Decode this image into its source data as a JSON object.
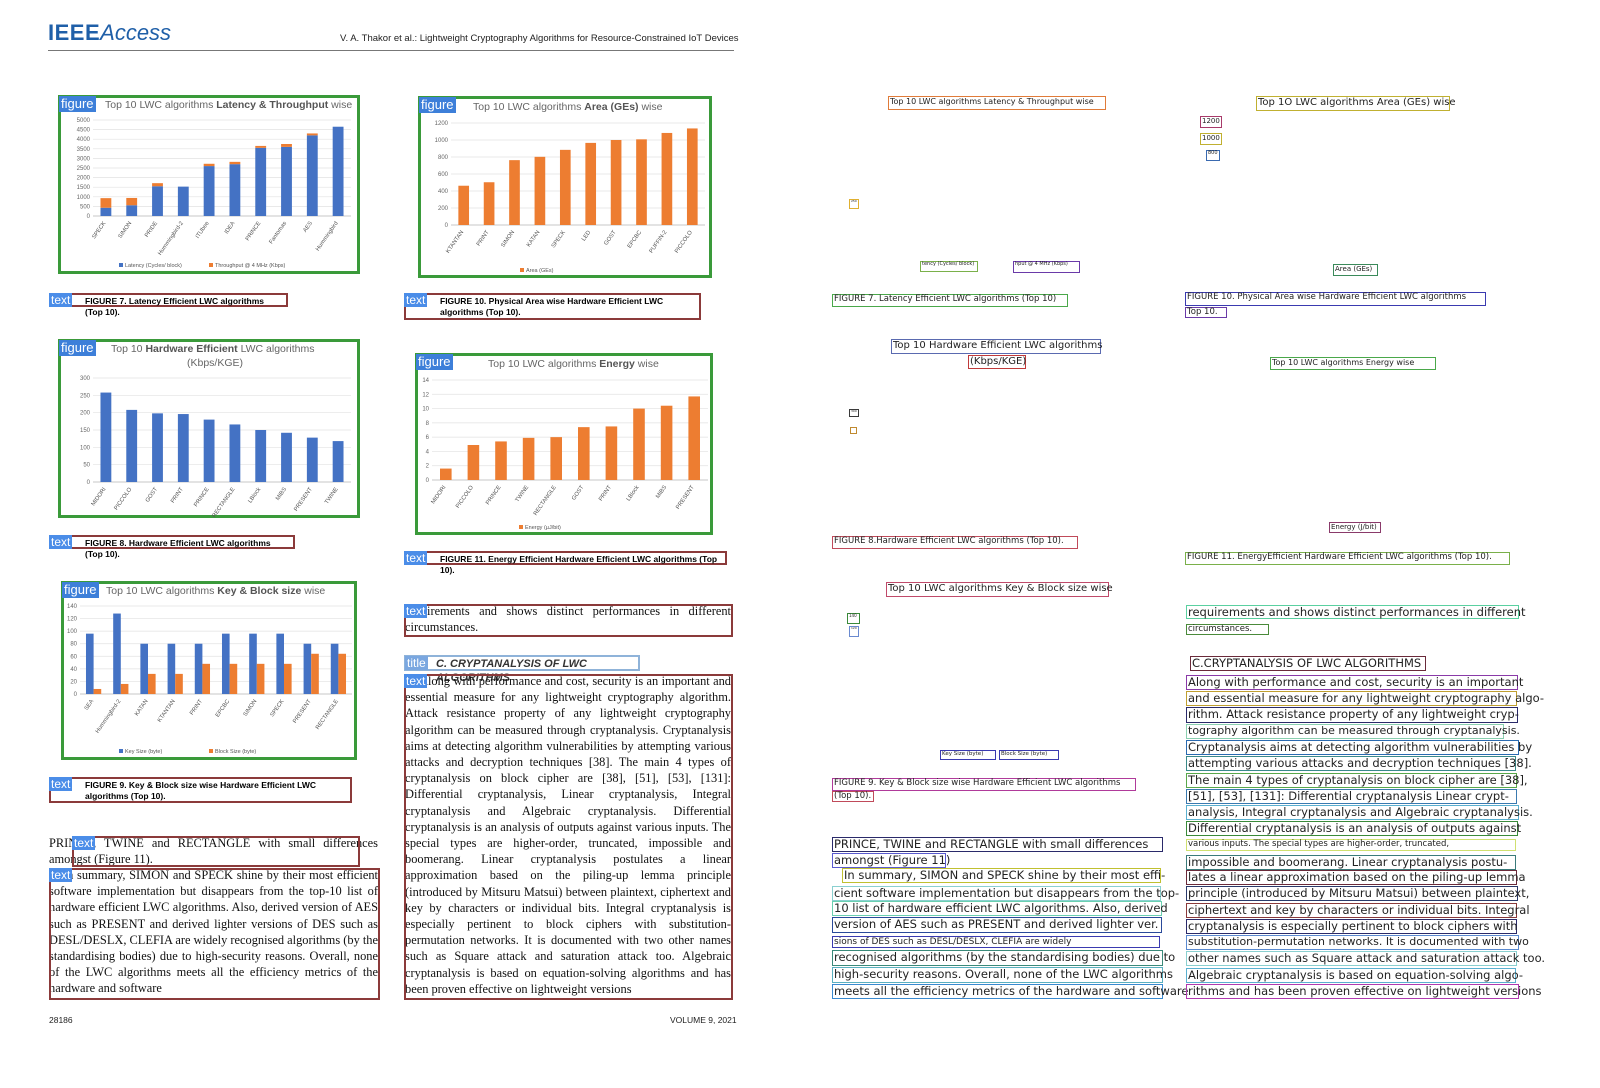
{
  "header": {
    "logo_ieee": "IEEE",
    "logo_access": "Access",
    "running_head": "V. A. Thakor et al.: Lightweight Cryptography Algorithms for Resource-Constrained IoT Devices"
  },
  "tags": {
    "figure": "figure",
    "text": "text",
    "title": "title"
  },
  "figures": {
    "fig7": {
      "title_pre": "Top 10 LWC algorithms ",
      "title_bold": "Latency & Throughput",
      "title_post": " wise",
      "caption": "FIGURE 7.  Latency Efficient LWC algorithms (Top 10)."
    },
    "fig10": {
      "title_pre": "Top 10 LWC algorithms ",
      "title_bold": "Area (GEs)",
      "title_post": " wise",
      "caption": "FIGURE 10.  Physical Area wise Hardware Efficient LWC algorithms (Top 10)."
    },
    "fig8": {
      "title_pre": "Top 10 ",
      "title_bold": "Hardware Efficient",
      "title_post": " LWC algorithms",
      "title_line2": "(Kbps/KGE)",
      "caption": "FIGURE 8.  Hardware Efficient LWC algorithms (Top 10)."
    },
    "fig11": {
      "title_pre": "Top 10 LWC algorithms ",
      "title_bold": "Energy",
      "title_post": " wise",
      "caption": "FIGURE 11.  Energy Efficient Hardware Efficient LWC algorithms (Top 10)."
    },
    "fig9": {
      "title_pre": "Top 10 LWC algorithms ",
      "title_bold": "Key & Block size",
      "title_post": " wise",
      "caption": "FIGURE 9.  Key & Block size wise Hardware Efficient LWC algorithms (Top 10)."
    }
  },
  "chart_data": [
    {
      "id": "fig7",
      "type": "bar",
      "stacked": true,
      "categories": [
        "SPECK",
        "SIMON",
        "PRIDE",
        "Hummingbird-2",
        "ITUbee",
        "IDEA",
        "PRINCE",
        "Fantomas",
        "AES",
        "Hummingbird"
      ],
      "series": [
        {
          "name": "Latency (Cycles/ block)",
          "color": "#4472c4",
          "values": [
            430,
            560,
            1550,
            1530,
            2600,
            2700,
            3550,
            3600,
            4200,
            4650
          ]
        },
        {
          "name": "Throughput @ 4 MHz (Kbps)",
          "color": "#ed7d31",
          "values": [
            500,
            380,
            160,
            0,
            120,
            120,
            100,
            150,
            100,
            0
          ]
        }
      ],
      "yticks": [
        0,
        500,
        1000,
        1500,
        2000,
        2500,
        3000,
        3500,
        4000,
        4500,
        5000
      ],
      "ylim": [
        0,
        5000
      ],
      "legend": "bottom"
    },
    {
      "id": "fig10",
      "type": "bar",
      "categories": [
        "KTANTAN",
        "PRINT",
        "SIMON",
        "KATAN",
        "SPECK",
        "LED",
        "GOST",
        "EPCBC",
        "PUFFIN-2",
        "PICCOLO"
      ],
      "series": [
        {
          "name": "Area (GEs)",
          "color": "#ed7d31",
          "values": [
            462,
            503,
            763,
            802,
            884,
            966,
            1000,
            1008,
            1083,
            1136
          ]
        }
      ],
      "yticks": [
        0,
        200,
        400,
        600,
        800,
        1000,
        1200
      ],
      "ylim": [
        0,
        1200
      ],
      "legend": "bottom"
    },
    {
      "id": "fig8",
      "type": "bar",
      "categories": [
        "MIDORI",
        "PICCOLO",
        "GOST",
        "PRINT",
        "PRINCE",
        "RECTANGLE",
        "LBlock",
        "MIBS",
        "PRESENT",
        "TWINE"
      ],
      "series": [
        {
          "name": "",
          "color": "#4472c4",
          "values": [
            258,
            208,
            198,
            196,
            180,
            166,
            150,
            142,
            128,
            118
          ]
        }
      ],
      "yticks": [
        0,
        50,
        100,
        150,
        200,
        250,
        300
      ],
      "ylim": [
        0,
        300
      ],
      "legend": "none"
    },
    {
      "id": "fig11",
      "type": "bar",
      "categories": [
        "MIDORI",
        "PICCOLO",
        "PRINCE",
        "TWINE",
        "RECTANGLE",
        "GOST",
        "PRINT",
        "LBlock",
        "MIBS",
        "PRESENT"
      ],
      "series": [
        {
          "name": "Energy (µJ/bit)",
          "color": "#ed7d31",
          "values": [
            1.6,
            4.9,
            5.4,
            5.9,
            6.0,
            7.4,
            7.5,
            10,
            10.4,
            11.7
          ]
        }
      ],
      "yticks": [
        0,
        2,
        4,
        6,
        8,
        10,
        12,
        14
      ],
      "ylim": [
        0,
        14
      ],
      "legend": "bottom"
    },
    {
      "id": "fig9",
      "type": "bar",
      "categories": [
        "SEA",
        "Hummingbird-2",
        "KATAN",
        "KTANTAN",
        "PRINT",
        "EPCBC",
        "SIMON",
        "SPECK",
        "PRESENT",
        "RECTANGLE"
      ],
      "series": [
        {
          "name": "Key Size (byte)",
          "color": "#4472c4",
          "values": [
            96,
            128,
            80,
            80,
            80,
            96,
            96,
            96,
            80,
            80
          ]
        },
        {
          "name": "Block Size (byte)",
          "color": "#ed7d31",
          "values": [
            8,
            16,
            32,
            32,
            48,
            48,
            48,
            48,
            64,
            64
          ]
        }
      ],
      "yticks": [
        0,
        20,
        40,
        60,
        80,
        100,
        120,
        140
      ],
      "ylim": [
        0,
        140
      ],
      "legend": "bottom"
    }
  ],
  "left_col": {
    "para1": "PRINCE, TWINE and RECTANGLE with small differences amongst (Figure 11).",
    "para2": "In summary, SIMON and SPECK shine by their most efficient software implementation but disappears from the top-10 list of hardware efficient LWC algorithms. Also, derived version of AES such as PRESENT and derived lighter versions of DES such as DESL/DESLX, CLEFIA are widely recognised algorithms (by the standardising bodies) due to high-security reasons. Overall, none of the LWC algorithms meets all the efficiency metrics of the hardware and software"
  },
  "right_col": {
    "para1": "requirements and shows distinct performances in different circumstances.",
    "section_title": "C. CRYPTANALYSIS OF LWC ALGORITHMS",
    "para2": "Along with performance and cost, security is an important and essential measure for any lightweight cryptography algorithm. Attack resistance property of any lightweight cryptography algorithm can be measured through cryptanalysis. Cryptanalysis aims at detecting algorithm vulnerabilities by attempting various attacks and decryption techniques [38]. The main 4 types of cryptanalysis on block cipher are [38], [51], [53], [131]: Differential cryptanalysis, Linear cryptanalysis, Integral cryptanalysis and Algebraic cryptanalysis. Differential cryptanalysis is an analysis of outputs against various inputs. The special types are higher-order, truncated, impossible and boomerang. Linear cryptanalysis postulates a linear approximation based on the piling-up lemma principle (introduced by Mitsuru Matsui) between plaintext, ciphertext and key by characters or individual bits. Integral cryptanalysis is especially pertinent to block ciphers with substitution-permutation networks. It is documented with two other names such as Square attack and saturation attack too. Algebraic cryptanalysis is based on equation-solving algorithms and has been proven effective on lightweight versions"
  },
  "footer": {
    "page": "28186",
    "volume": "VOLUME 9, 2021"
  },
  "ocr": {
    "fig7_title": "Top 10 LWC algorithms Latency & Throughput wise",
    "fig7_leg1": "tency (Cycles/ block)",
    "fig7_leg2": "hput @ 4 MHz (Kbps)",
    "fig7_tick": "250",
    "fig7_cap": "FIGURE 7. Latency Efficient LWC algorithms (Top 10)",
    "fig10_title": "Top 1O LWC algorithms Area (GEs) wise",
    "fig10_t1": "1200",
    "fig10_t2": "1000",
    "fig10_t3": "800",
    "fig10_leg": "Area (GEs)",
    "fig10_cap_l1": "FIGURE 10. Physical Area wise Hardware Efficient LWC algorithms",
    "fig10_cap_l2": "Top 10.",
    "fig8_title_l1": "Top 10 Hardware Efficient LWC algorithms",
    "fig8_title_l2": "(Kbps/KGE)",
    "fig8_t1": "300",
    "fig8_cap": "FIGURE 8.Hardware Efficient LWC algorithms (Top 10).",
    "fig11_title": "Top 10 LWC algorithms Energy wise",
    "fig11_leg": "Energy (J/bit)",
    "fig11_cap": "FIGURE 11. EnergyEfficient Hardware Efficient LWC algorithms (Top 10).",
    "fig9_title": "Top 10 LWC algorithms Key & Block size wise",
    "fig9_t1": "140",
    "fig9_t2": "120",
    "fig9_leg1": "Key Size (byte)",
    "fig9_leg2": "Block Size (byte)",
    "fig9_cap_l1": "FIGURE 9. Key & Block size wise Hardware Efficient LWC algorithms",
    "fig9_cap_l2": "(Top 10).",
    "left_lines": [
      "PRINCE, TWINE and RECTANGLE with small differences",
      "amongst (Figure 11)",
      "In summary, SIMON and SPECK shine by their most effi-",
      "cient software implementation but disappears from the top-",
      "10 list of hardware efficient LWC algorithms. Also, derived",
      "version of AES such as PRESENT and derived lighter ver.",
      "sions of DES such as DESL/DESLX, CLEFIA are widely",
      "recognised algorithms (by the standardising bodies) due to",
      "high-security reasons. Overall, none of the LWC algorithms",
      "meets all the efficiency metrics of the hardware and software"
    ],
    "right_lines": [
      "requirements and shows distinct performances in different",
      "circumstances.",
      "C.CRYPTANALYSIS OF LWC ALGORITHMS",
      "Along with performance and cost, security is an important",
      "and essential measure for any lightweight cryptography algo-",
      "rithm. Attack resistance property of any lightweight cryp-",
      "tography algorithm can be measured through cryptanalysis.",
      "Cryptanalysis aims at detecting algorithm vulnerabilities by",
      "attempting various attacks and decryption techniques [38].",
      "The main 4 types of cryptanalysis on block cipher are [38],",
      "[51], [53], [131]: Differential cryptanalysis  Linear crypt-",
      "analysis, Integral cryptanalysis and Algebraic cryptanalysis.",
      "Differential cryptanalysis is an analysis of outputs against",
      "various inputs. The special types are higher-order, truncated,",
      "impossible and boomerang. Linear cryptanalysis postu-",
      "lates a linear approximation based on the piling-up lemma",
      "principle (introduced by Mitsuru Matsui) between plaintext,",
      "ciphertext and key by characters or individual bits. Integral",
      "cryptanalysis is especially pertinent to block ciphers with",
      "substitution-permutation networks. It is documented with two",
      "other names such as Square attack and saturation attack too.",
      "Algebraic cryptanalysis is based on equation-solving algo-",
      "rithms and has been proven effective on lightweight versions"
    ]
  },
  "colors": {
    "figure_box": "#3a9a3a",
    "text_box": "#8b3a3a",
    "tag_blue": "#4b8de8",
    "bar_blue": "#4472c4",
    "bar_orange": "#ed7d31"
  }
}
